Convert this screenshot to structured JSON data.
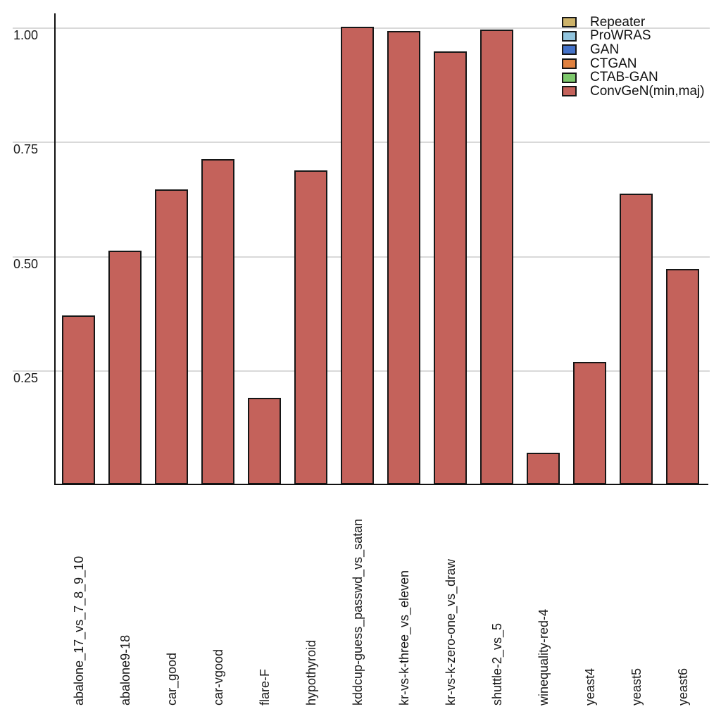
{
  "chart_data": {
    "type": "bar",
    "title": "",
    "xlabel": "",
    "ylabel": "",
    "categories": [
      "abalone_17_vs_7_8_9_10",
      "abalone9-18",
      "car_good",
      "car-vgood",
      "flare-F",
      "hypothyroid",
      "kddcup-guess_passwd_vs_satan",
      "kr-vs-k-three_vs_eleven",
      "kr-vs-k-zero-one_vs_draw",
      "shuttle-2_vs_5",
      "winequality-red-4",
      "yeast4",
      "yeast5",
      "yeast6"
    ],
    "series": [
      {
        "name": "ConvGeN(min,maj)",
        "values": [
          0.37,
          0.512,
          0.645,
          0.712,
          0.19,
          0.687,
          1.002,
          0.993,
          0.948,
          0.995,
          0.069,
          0.268,
          0.637,
          0.472
        ]
      }
    ],
    "yticks": [
      {
        "value": 1.0,
        "label": "1.00"
      },
      {
        "value": 0.75,
        "label": "0.75"
      },
      {
        "value": 0.5,
        "label": "0.50"
      },
      {
        "value": 0.25,
        "label": "0.25"
      }
    ],
    "ylim": [
      0,
      1.03
    ],
    "grid": "horizontal-major-only",
    "legend_position": "top-right",
    "legend": [
      {
        "label": "Repeater",
        "color": "#cdb36a"
      },
      {
        "label": "ProWRAS",
        "color": "#92c5de"
      },
      {
        "label": "GAN",
        "color": "#4472c8"
      },
      {
        "label": "CTGAN",
        "color": "#e0813f"
      },
      {
        "label": "CTAB-GAN",
        "color": "#7ec96c"
      },
      {
        "label": "ConvGeN(min,maj)",
        "color": "#c4625b"
      }
    ],
    "bar_fill": "#c4625b",
    "bar_border": "#161616",
    "gridline_color": "#d9d9d9",
    "axis_color": "#111111"
  }
}
